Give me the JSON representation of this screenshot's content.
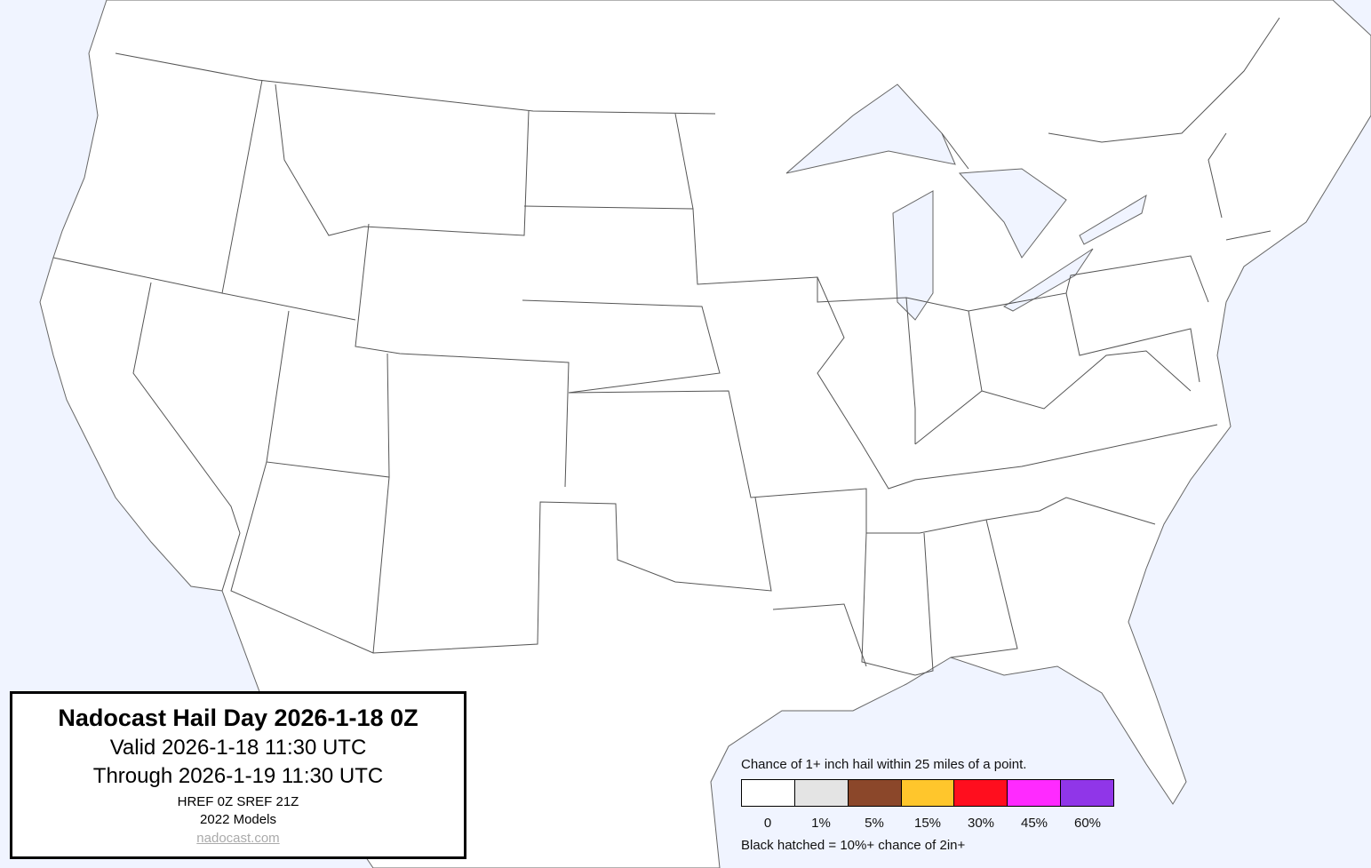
{
  "title_box": {
    "title": "Nadocast Hail Day 2026-1-18 0Z",
    "valid": "Valid 2026-1-18 11:30 UTC",
    "through": "Through 2026-1-19 11:30 UTC",
    "models_run": "HREF 0Z SREF 21Z",
    "models_version": "2022 Models",
    "site_link": "nadocast.com"
  },
  "legend": {
    "caption": "Chance of 1+ inch hail within 25 miles of a point.",
    "bins": [
      {
        "label": "0",
        "color": "#ffffff"
      },
      {
        "label": "1%",
        "color": "#e4e4e4"
      },
      {
        "label": "5%",
        "color": "#8b472a"
      },
      {
        "label": "15%",
        "color": "#ffc62c"
      },
      {
        "label": "30%",
        "color": "#ff0e1e"
      },
      {
        "label": "45%",
        "color": "#ff2aff"
      },
      {
        "label": "60%",
        "color": "#9036e8"
      }
    ],
    "note": "Black hatched = 10%+ chance of 2in+"
  },
  "map": {
    "water_color": "#f0f4ff",
    "land_color": "#ffffff",
    "boundary_color": "#555555",
    "forecast_areas": []
  }
}
